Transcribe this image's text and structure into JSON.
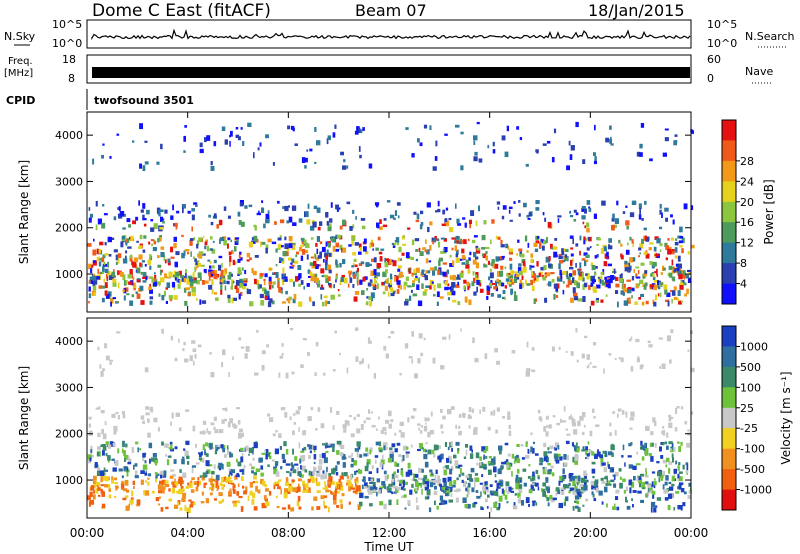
{
  "header": {
    "station": "Dome C East (fitACF)",
    "beam": "Beam 07",
    "date": "18/Jan/2015"
  },
  "strip_panels": {
    "noise": {
      "left_label": "N.Sky",
      "right_label": "N.Search",
      "left_ticks": [
        "10^5",
        "10^0"
      ],
      "right_ticks": [
        "10^5",
        "10^0"
      ]
    },
    "freq": {
      "left_label_1": "Freq.",
      "left_label_2": "[MHz]",
      "left_ticks": [
        "18",
        "8"
      ],
      "right_label": "Nave",
      "right_ticks": [
        "60",
        "0"
      ]
    },
    "cpid": {
      "label": "CPID",
      "value": "twofsound 3501"
    }
  },
  "chart_data": [
    {
      "type": "heatmap",
      "title": "",
      "xlabel": "",
      "ylabel": "Slant Range [km]",
      "yticks": [
        "1000",
        "2000",
        "3000",
        "4000"
      ],
      "ylim": [
        180,
        4500
      ],
      "xlim": [
        "00:00",
        "24:00"
      ],
      "xticks": [
        "00:00",
        "04:00",
        "08:00",
        "12:00",
        "16:00",
        "20:00",
        "00:00"
      ],
      "colorbar": {
        "label": "Power [dB]",
        "ticks": [
          "4",
          "8",
          "12",
          "16",
          "20",
          "24",
          "28"
        ],
        "colors": [
          "#1010ff",
          "#2a3fb0",
          "#2f7a9a",
          "#4c9a5c",
          "#8cc63f",
          "#e5d21c",
          "#f29a17",
          "#ef5a1a",
          "#e51010"
        ]
      }
    },
    {
      "type": "heatmap",
      "title": "",
      "xlabel": "Time UT",
      "ylabel": "Slant Range [km]",
      "yticks": [
        "1000",
        "2000",
        "3000",
        "4000"
      ],
      "ylim": [
        180,
        4500
      ],
      "xlim": [
        "00:00",
        "24:00"
      ],
      "xticks": [
        "00:00",
        "04:00",
        "08:00",
        "12:00",
        "16:00",
        "20:00",
        "00:00"
      ],
      "colorbar": {
        "label": "Velocity [m s⁻¹]",
        "ticks": [
          "1000",
          "500",
          "100",
          "25",
          "-25",
          "-100",
          "-500",
          "-1000"
        ],
        "colors": [
          "#1a3fc0",
          "#2f6fa0",
          "#3a8a6a",
          "#6dc23a",
          "#c8c8c8",
          "#f0d020",
          "#f09020",
          "#f06010",
          "#e01010"
        ]
      }
    }
  ]
}
